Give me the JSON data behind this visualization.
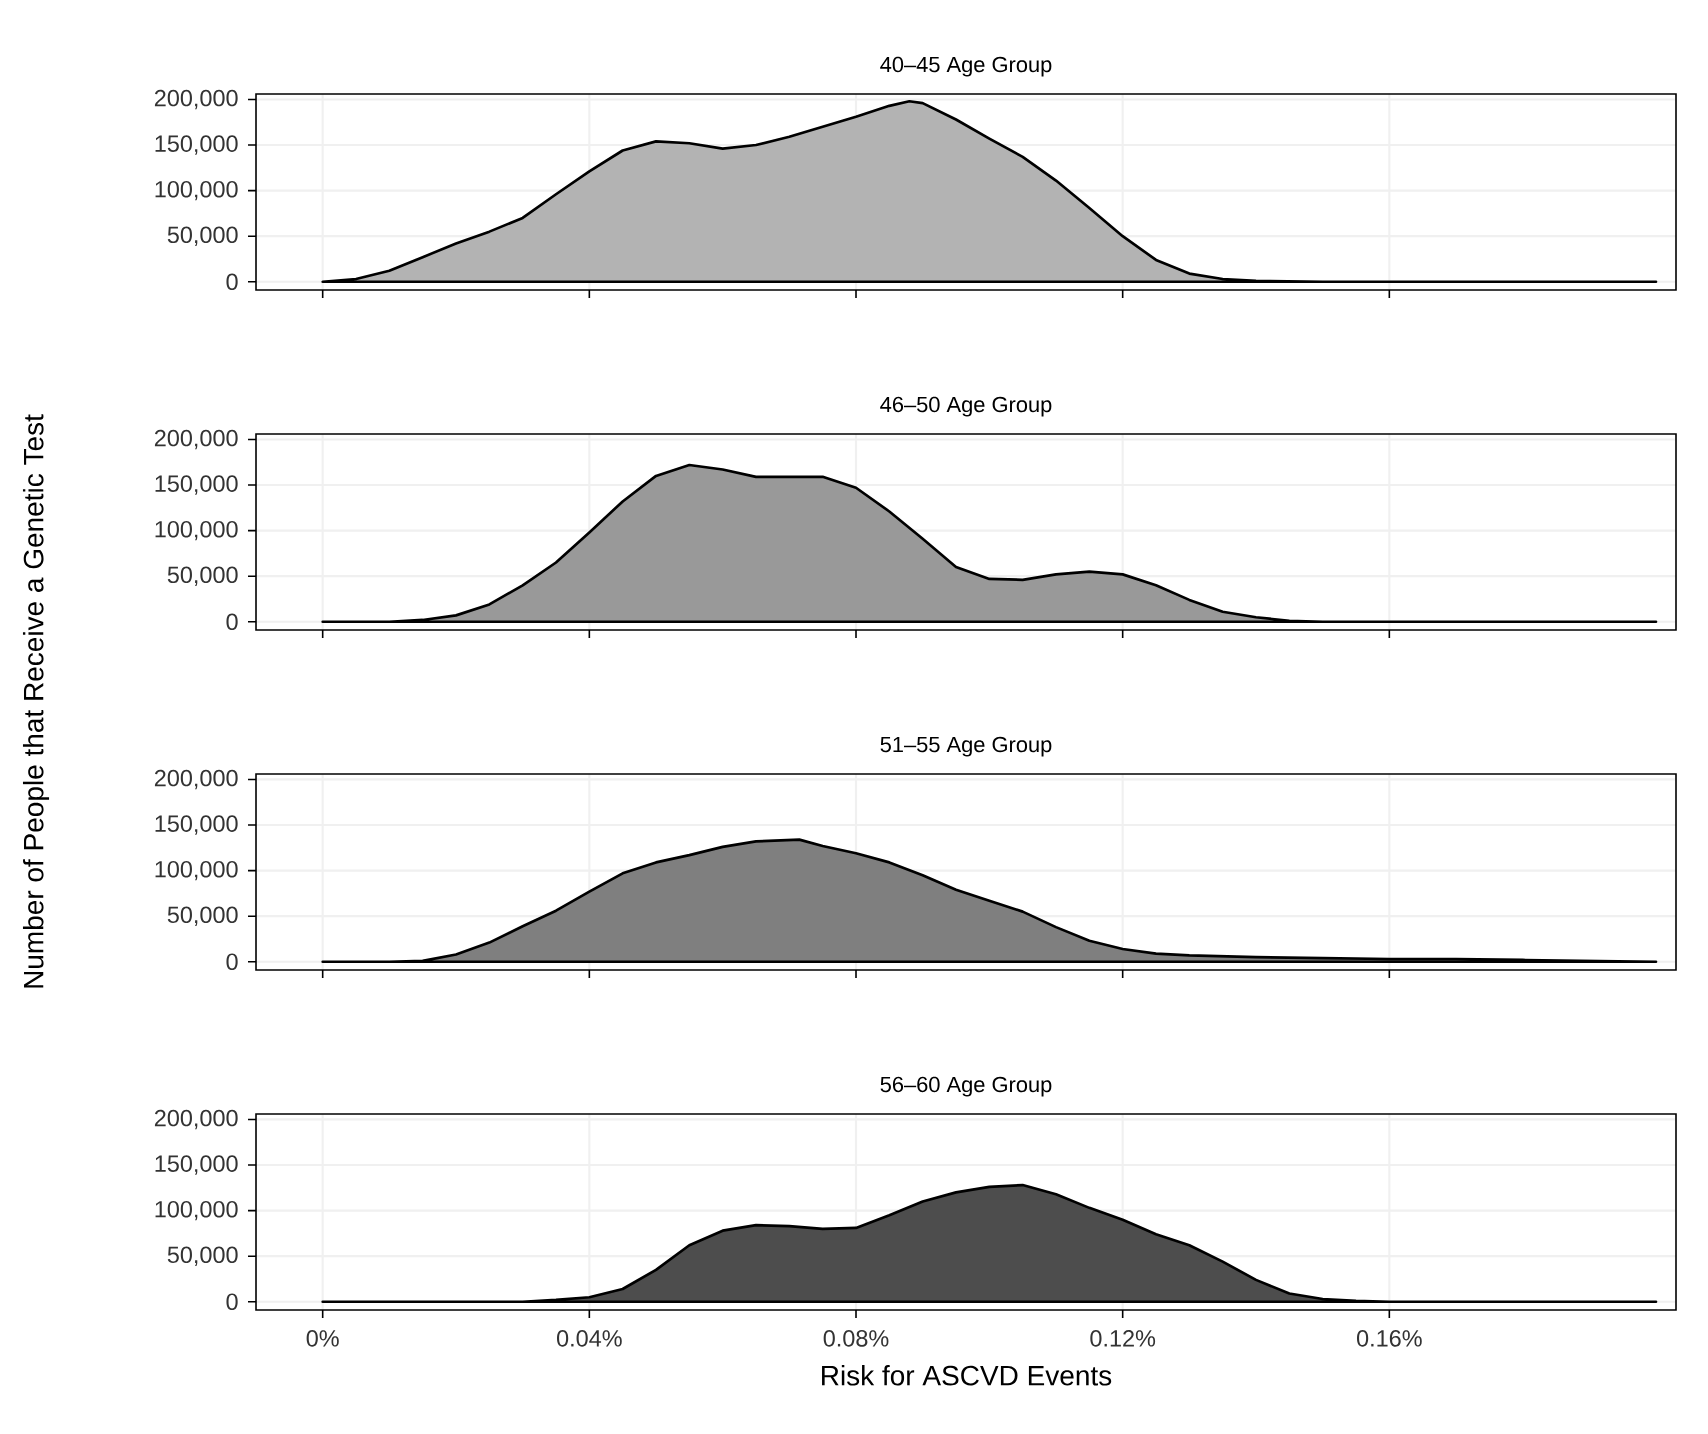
{
  "chart_data": [
    {
      "type": "area",
      "title": "40–45 Age Group",
      "ylabel": "Number of People that Receive a Genetic Test",
      "tick_labels": "y",
      "grid": true,
      "xlim": [
        -0.01,
        0.203
      ],
      "ylim": [
        -9000,
        206000
      ],
      "xticks": [
        {
          "value": 0,
          "label": null
        },
        {
          "value": 0.04,
          "label": null
        },
        {
          "value": 0.08,
          "label": null
        },
        {
          "value": 0.12,
          "label": null
        },
        {
          "value": 0.16,
          "label": null
        }
      ],
      "yticks": [
        0,
        {
          "value": 50000,
          "label": "50,000"
        },
        {
          "value": 100000,
          "label": "100,000"
        },
        {
          "value": 150000,
          "label": "150,000"
        },
        {
          "value": 200000,
          "label": "200,000"
        }
      ],
      "series": [
        {
          "color": "#b3b3b3",
          "x": [
            0,
            0.005,
            0.01,
            0.015,
            0.02,
            0.025,
            0.03,
            0.035,
            0.04,
            0.045,
            0.05,
            0.055,
            0.06,
            0.065,
            0.07,
            0.075,
            0.08,
            0.085,
            0.088,
            0.09,
            0.095,
            0.1,
            0.105,
            0.11,
            0.115,
            0.12,
            0.125,
            0.13,
            0.135,
            0.14,
            0.15,
            0.2
          ],
          "values": [
            0,
            3000,
            12000,
            27000,
            42000,
            55000,
            70000,
            96000,
            121000,
            144000,
            154000,
            152000,
            146000,
            150000,
            159000,
            170000,
            181000,
            193000,
            198000,
            196000,
            178000,
            157000,
            137000,
            111000,
            81000,
            50000,
            24000,
            9000,
            3000,
            1000,
            0,
            0
          ]
        }
      ]
    },
    {
      "type": "area",
      "title": "46–50 Age Group",
      "tick_labels": "y",
      "grid": true,
      "xlim": [
        -0.01,
        0.203
      ],
      "ylim": [
        -9000,
        206000
      ],
      "xticks": [
        {
          "value": 0,
          "label": null
        },
        {
          "value": 0.04,
          "label": null
        },
        {
          "value": 0.08,
          "label": null
        },
        {
          "value": 0.12,
          "label": null
        },
        {
          "value": 0.16,
          "label": null
        }
      ],
      "yticks": [
        0,
        {
          "value": 50000,
          "label": "50,000"
        },
        {
          "value": 100000,
          "label": "100,000"
        },
        {
          "value": 150000,
          "label": "150,000"
        },
        {
          "value": 200000,
          "label": "200,000"
        }
      ],
      "series": [
        {
          "color": "#999999",
          "x": [
            0,
            0.01,
            0.015,
            0.02,
            0.025,
            0.03,
            0.035,
            0.04,
            0.045,
            0.05,
            0.055,
            0.06,
            0.065,
            0.07,
            0.075,
            0.08,
            0.085,
            0.09,
            0.095,
            0.1,
            0.105,
            0.11,
            0.115,
            0.12,
            0.125,
            0.13,
            0.135,
            0.14,
            0.145,
            0.15,
            0.2
          ],
          "values": [
            0,
            0,
            2000,
            7000,
            19000,
            40000,
            65000,
            98000,
            132000,
            160000,
            172000,
            167000,
            159000,
            159000,
            159000,
            147000,
            121000,
            91000,
            60000,
            47000,
            46000,
            52000,
            55000,
            52000,
            40000,
            24000,
            11000,
            5000,
            1000,
            0,
            0
          ]
        }
      ]
    },
    {
      "type": "area",
      "title": "51–55 Age Group",
      "tick_labels": "y",
      "grid": true,
      "xlim": [
        -0.01,
        0.203
      ],
      "ylim": [
        -9000,
        206000
      ],
      "xticks": [
        {
          "value": 0,
          "label": null
        },
        {
          "value": 0.04,
          "label": null
        },
        {
          "value": 0.08,
          "label": null
        },
        {
          "value": 0.12,
          "label": null
        },
        {
          "value": 0.16,
          "label": null
        }
      ],
      "yticks": [
        0,
        {
          "value": 50000,
          "label": "50,000"
        },
        {
          "value": 100000,
          "label": "100,000"
        },
        {
          "value": 150000,
          "label": "150,000"
        },
        {
          "value": 200000,
          "label": "200,000"
        }
      ],
      "series": [
        {
          "color": "#7f7f7f",
          "x": [
            0,
            0.01,
            0.015,
            0.02,
            0.025,
            0.03,
            0.035,
            0.04,
            0.045,
            0.05,
            0.055,
            0.06,
            0.065,
            0.0715,
            0.075,
            0.08,
            0.085,
            0.09,
            0.095,
            0.1,
            0.105,
            0.11,
            0.115,
            0.12,
            0.125,
            0.13,
            0.14,
            0.15,
            0.16,
            0.17,
            0.18,
            0.19,
            0.2
          ],
          "values": [
            0,
            0,
            1000,
            8000,
            21000,
            39000,
            56000,
            77000,
            97000,
            109000,
            117000,
            126000,
            132000,
            134000,
            127000,
            119000,
            109000,
            95000,
            79000,
            67000,
            55000,
            38000,
            23000,
            14000,
            9000,
            7000,
            5000,
            4000,
            3000,
            3000,
            2000,
            1000,
            0
          ]
        }
      ]
    },
    {
      "type": "area",
      "title": "56–60 Age Group",
      "xlabel": "Risk for ASCVD Events",
      "grid": true,
      "xlim": [
        -0.01,
        0.203
      ],
      "ylim": [
        -9000,
        206000
      ],
      "xticks": [
        {
          "value": 0,
          "label": "0%"
        },
        {
          "value": 0.04,
          "label": "0.04%"
        },
        {
          "value": 0.08,
          "label": "0.08%"
        },
        {
          "value": 0.12,
          "label": "0.12%"
        },
        {
          "value": 0.16,
          "label": "0.16%"
        }
      ],
      "yticks": [
        0,
        {
          "value": 50000,
          "label": "50,000"
        },
        {
          "value": 100000,
          "label": "100,000"
        },
        {
          "value": 150000,
          "label": "150,000"
        },
        {
          "value": 200000,
          "label": "200,000"
        }
      ],
      "series": [
        {
          "color": "#4d4d4d",
          "x": [
            0,
            0.03,
            0.035,
            0.04,
            0.045,
            0.05,
            0.055,
            0.06,
            0.065,
            0.07,
            0.075,
            0.08,
            0.085,
            0.09,
            0.095,
            0.1,
            0.105,
            0.11,
            0.115,
            0.12,
            0.125,
            0.13,
            0.135,
            0.14,
            0.145,
            0.15,
            0.155,
            0.16,
            0.2
          ],
          "values": [
            0,
            0,
            2000,
            5000,
            14000,
            35000,
            62000,
            78000,
            84000,
            83000,
            80000,
            81000,
            95000,
            110000,
            120000,
            126000,
            128000,
            118000,
            103000,
            90000,
            74000,
            62000,
            44000,
            24000,
            9000,
            3000,
            1000,
            0,
            0
          ]
        }
      ]
    }
  ]
}
